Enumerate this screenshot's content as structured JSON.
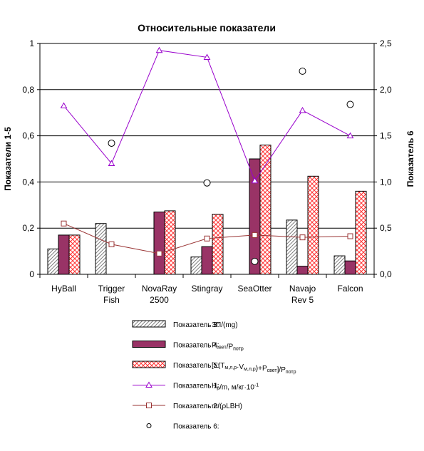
{
  "chart_data": {
    "type": "bar",
    "title": "Относительные показатели",
    "ylabel_left": "Показатели 1-5",
    "ylabel_right": "Показатель 6",
    "ylim_left": [
      0,
      1
    ],
    "ylim_right": [
      0,
      2.5
    ],
    "yticks_left": [
      "0",
      "0,2",
      "0,4",
      "0,6",
      "0,8",
      "1"
    ],
    "yticks_right": [
      "0,0",
      "0,5",
      "1,0",
      "1,5",
      "2,0",
      "2,5"
    ],
    "grid": "horizontal",
    "categories": [
      {
        "line1": "HyBall",
        "line2": ""
      },
      {
        "line1": "Trigger",
        "line2": "Fish"
      },
      {
        "line1": "NovaRay",
        "line2": "2500"
      },
      {
        "line1": "Stingray",
        "line2": ""
      },
      {
        "line1": "SeaOtter",
        "line2": ""
      },
      {
        "line1": "Navajo",
        "line2": "Rev 5"
      },
      {
        "line1": "Falcon",
        "line2": ""
      }
    ],
    "series": [
      {
        "key": "s3",
        "kind": "bar",
        "axis": "left",
        "pattern": "hatch",
        "color": "#808080",
        "values": [
          0.11,
          0.22,
          0,
          0.075,
          0,
          0.235,
          0.08
        ]
      },
      {
        "key": "s4",
        "kind": "bar",
        "axis": "left",
        "pattern": "solid",
        "color": "#993366",
        "values": [
          0.17,
          0,
          0.27,
          0.12,
          0.5,
          0.035,
          0.058
        ]
      },
      {
        "key": "s5",
        "kind": "bar",
        "axis": "left",
        "pattern": "crosshatch",
        "color": "#ff0000",
        "values": [
          0.17,
          0,
          0.275,
          0.26,
          0.56,
          0.425,
          0.36
        ]
      },
      {
        "key": "s1",
        "kind": "line",
        "axis": "left",
        "marker": "triangle",
        "color": "#9900cc",
        "values": [
          0.73,
          0.48,
          0.97,
          0.94,
          0.405,
          0.71,
          0.6
        ]
      },
      {
        "key": "s2",
        "kind": "line",
        "axis": "left",
        "marker": "square",
        "color": "#993333",
        "values": [
          0.22,
          0.13,
          0.09,
          0.155,
          0.17,
          0.16,
          0.165
        ]
      },
      {
        "key": "s6",
        "kind": "scatter",
        "axis": "right",
        "marker": "circle",
        "color": "#000000",
        "values": [
          null,
          1.42,
          null,
          0.99,
          0.14,
          2.2,
          1.84
        ]
      }
    ],
    "legend": [
      {
        "key": "s3",
        "name": "Показатель 3:",
        "formula": [
          [
            "ЗП/(mg)",
            ""
          ]
        ]
      },
      {
        "key": "s4",
        "name": "Показатель 4:",
        "formula": [
          [
            "P",
            ""
          ],
          [
            "свет",
            "sub"
          ],
          [
            "/P",
            ""
          ],
          [
            "потр",
            "sub"
          ]
        ]
      },
      {
        "key": "s5",
        "name": "Показатель 5:",
        "formula": [
          [
            "[Σ(T",
            ""
          ],
          [
            "м,л,р",
            "sub"
          ],
          [
            "·V",
            ""
          ],
          [
            "м,л,р",
            "sub"
          ],
          [
            ")+P",
            ""
          ],
          [
            "свет",
            "sub"
          ],
          [
            "]/P",
            ""
          ],
          [
            "потр",
            "sub"
          ]
        ]
      },
      {
        "key": "s1",
        "name": "Показатель 1:",
        "formula": [
          [
            "H",
            ""
          ],
          [
            "р",
            "sub"
          ],
          [
            "/m,  м/кг·10",
            ""
          ],
          [
            "-1",
            "sup"
          ]
        ]
      },
      {
        "key": "s2",
        "name": "Показатель 2:",
        "formula": [
          [
            "m/(ρLBH)",
            ""
          ]
        ]
      },
      {
        "key": "s6",
        "name": "Показатель 6:",
        "formula": []
      }
    ]
  }
}
